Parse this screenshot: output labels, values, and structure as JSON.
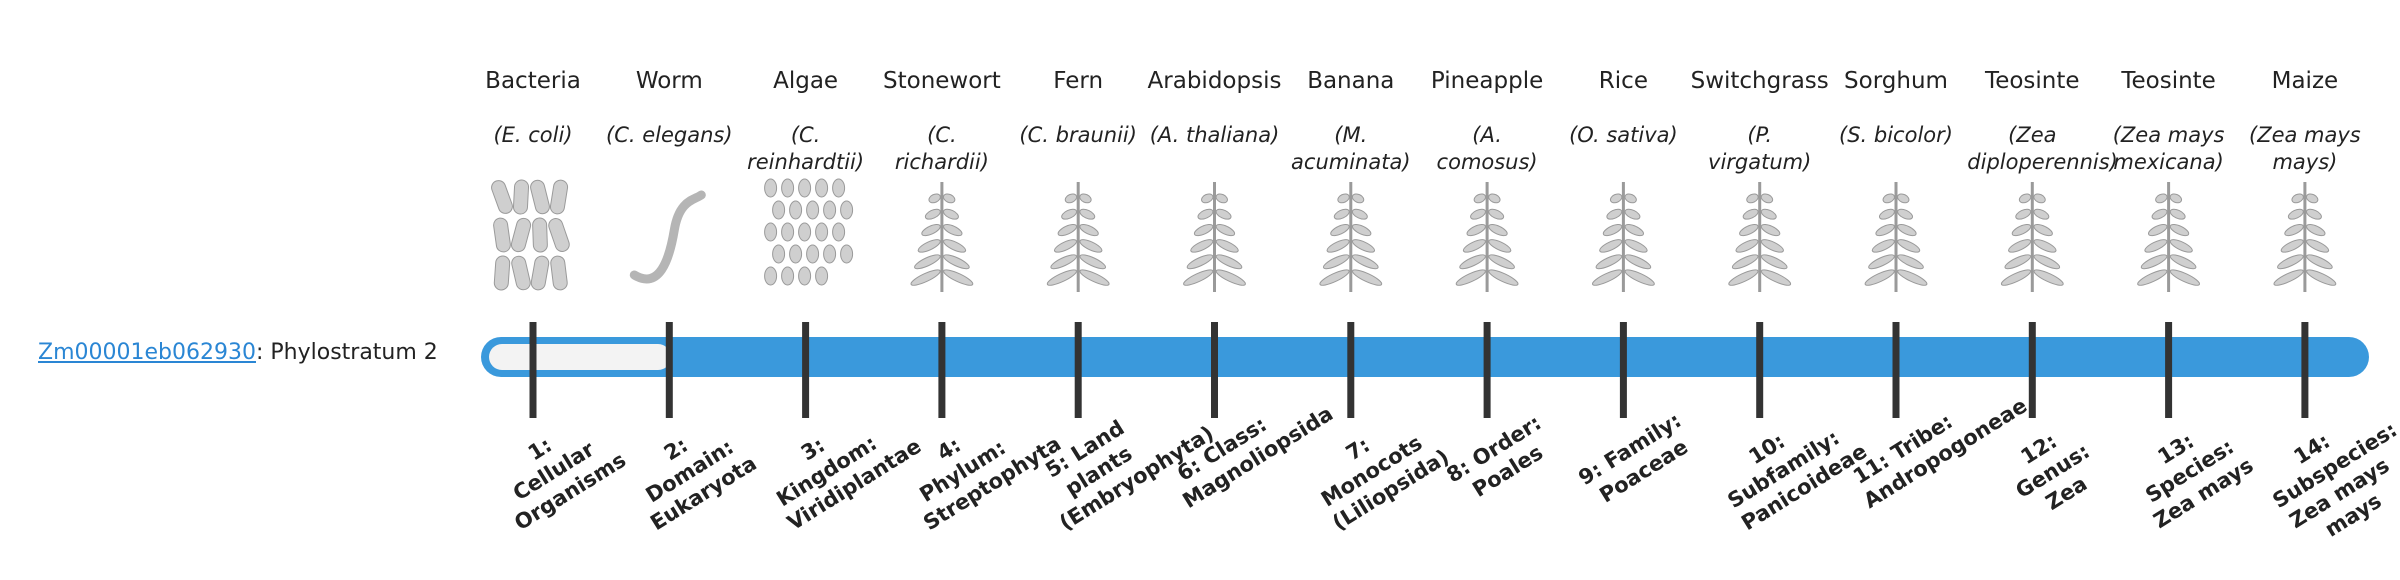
{
  "gene": {
    "id": "Zm00001eb062930",
    "suffix": ": Phylostratum 2"
  },
  "organisms": [
    {
      "name": "Bacteria",
      "species": "(E. coli)"
    },
    {
      "name": "Worm",
      "species": "(C. elegans)"
    },
    {
      "name": "Algae",
      "species": "(C. reinhardtii)"
    },
    {
      "name": "Stonewort",
      "species": "(C. richardii)"
    },
    {
      "name": "Fern",
      "species": "(C. braunii)"
    },
    {
      "name": "Arabidopsis",
      "species": "(A. thaliana)"
    },
    {
      "name": "Banana",
      "species": "(M. acuminata)"
    },
    {
      "name": "Pineapple",
      "species": "(A. comosus)"
    },
    {
      "name": "Rice",
      "species": "(O. sativa)"
    },
    {
      "name": "Switchgrass",
      "species": "(P. virgatum)"
    },
    {
      "name": "Sorghum",
      "species": "(S. bicolor)"
    },
    {
      "name": "Teosinte",
      "species": "(Zea diploperennis)"
    },
    {
      "name": "Teosinte",
      "species": "(Zea mays mexicana)"
    },
    {
      "name": "Maize",
      "species": "(Zea mays mays)"
    }
  ],
  "strata": [
    "1: Cellular Organisms",
    "2: Domain: Eukaryota",
    "3: Kingdom: Viridiplantae",
    "4: Phylum: Streptophyta",
    "5: Land plants (Embryophyta)",
    "6: Class: Magnoliopsida",
    "7: Monocots (Liliopsida)",
    "8: Order: Poales",
    "9: Family: Poaceae",
    "10: Subfamily: Panicoideae",
    "11: Tribe: Andropogoneae",
    "12: Genus: Zea",
    "13: Species: Zea mays",
    "14: Subspecies: Zea mays mays"
  ]
}
